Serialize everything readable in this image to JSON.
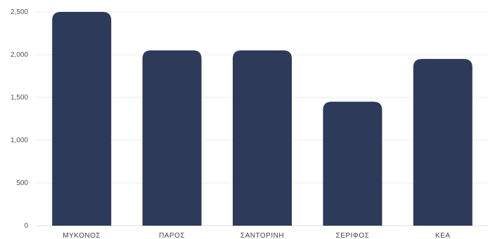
{
  "chart_data": {
    "type": "bar",
    "categories": [
      "ΜΥΚΟΝΟΣ",
      "ΠΑΡΟΣ",
      "ΣΑΝΤΟΡΙΝΗ",
      "ΣΕΡΙΦΟΣ",
      "ΚΕΑ"
    ],
    "values": [
      2500,
      2050,
      2050,
      1450,
      1950
    ],
    "ylim": [
      0,
      2500
    ],
    "y_ticks": [
      0,
      500,
      1000,
      1500,
      2000,
      2500
    ],
    "y_tick_labels": [
      "0",
      "500",
      "1,000",
      "1,500",
      "2,000",
      "2,500"
    ],
    "grid": true,
    "bar_color": "#2d3a5a",
    "title": "",
    "xlabel": "",
    "ylabel": ""
  }
}
